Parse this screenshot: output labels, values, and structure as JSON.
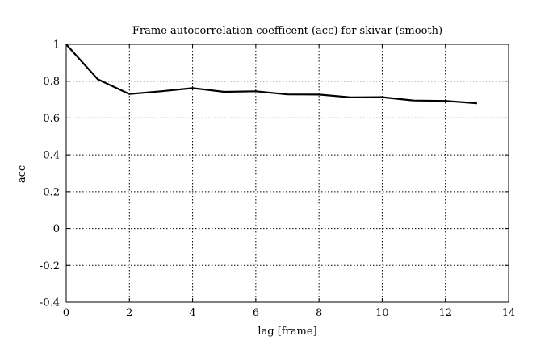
{
  "chart_data": {
    "type": "line",
    "title": "Frame autocorrelation coefficent (acc) for skivar (smooth)",
    "xlabel": "lag [frame]",
    "ylabel": "acc",
    "xlim": [
      0,
      14
    ],
    "ylim": [
      -0.4,
      1
    ],
    "x_ticks": [
      0,
      2,
      4,
      6,
      8,
      10,
      12,
      14
    ],
    "x_tick_labels": [
      "0",
      "2",
      "4",
      "6",
      "8",
      "10",
      "12",
      "14"
    ],
    "y_ticks": [
      -0.4,
      -0.2,
      0,
      0.2,
      0.4,
      0.6,
      0.8,
      1
    ],
    "y_tick_labels": [
      "-0.4",
      "-0.2",
      "0",
      "0.2",
      "0.4",
      "0.6",
      "0.8",
      "1"
    ],
    "grid": true,
    "grid_style": "dotted",
    "series": [
      {
        "color": "#000000",
        "x": [
          0,
          1,
          2,
          3,
          4,
          5,
          6,
          7,
          8,
          9,
          10,
          11,
          12,
          13
        ],
        "values": [
          1.0,
          0.81,
          0.73,
          0.745,
          0.762,
          0.742,
          0.745,
          0.728,
          0.727,
          0.712,
          0.713,
          0.695,
          0.693,
          0.68
        ]
      }
    ]
  }
}
